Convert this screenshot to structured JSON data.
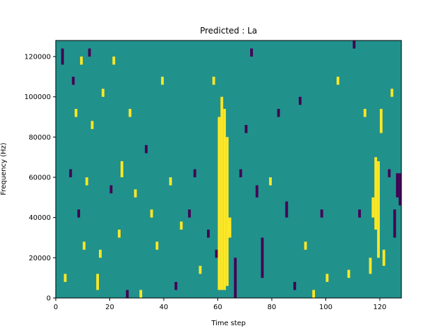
{
  "chart_data": {
    "type": "heatmap",
    "title": "Predicted : La",
    "xlabel": "Time step",
    "ylabel": "Frequency (Hz)",
    "xlim": [
      0,
      128
    ],
    "ylim": [
      0,
      128000
    ],
    "x_ticks": [
      0,
      20,
      40,
      60,
      80,
      100,
      120
    ],
    "y_ticks": [
      0,
      20000,
      40000,
      60000,
      80000,
      100000,
      120000
    ],
    "n_time_steps": 128,
    "n_frequency_bins": 64,
    "value_levels": [
      -1,
      0,
      1
    ],
    "colormap": {
      "-1": "#440154",
      "0": "#21918c",
      "1": "#fde725"
    },
    "cells": [
      {
        "t": 2,
        "f0": 116000,
        "f1": 124000,
        "v": -1
      },
      {
        "t": 3,
        "f0": 8000,
        "f1": 12000,
        "v": 1
      },
      {
        "t": 5,
        "f0": 60000,
        "f1": 64000,
        "v": -1
      },
      {
        "t": 6,
        "f0": 106000,
        "f1": 110000,
        "v": -1
      },
      {
        "t": 7,
        "f0": 90000,
        "f1": 94000,
        "v": 1
      },
      {
        "t": 8,
        "f0": 40000,
        "f1": 44000,
        "v": -1
      },
      {
        "t": 9,
        "f0": 116000,
        "f1": 120000,
        "v": 1
      },
      {
        "t": 10,
        "f0": 24000,
        "f1": 28000,
        "v": 1
      },
      {
        "t": 11,
        "f0": 56000,
        "f1": 60000,
        "v": 1
      },
      {
        "t": 12,
        "f0": 120000,
        "f1": 124000,
        "v": -1
      },
      {
        "t": 13,
        "f0": 84000,
        "f1": 88000,
        "v": 1
      },
      {
        "t": 15,
        "f0": 4000,
        "f1": 12000,
        "v": 1
      },
      {
        "t": 16,
        "f0": 20000,
        "f1": 24000,
        "v": 1
      },
      {
        "t": 17,
        "f0": 100000,
        "f1": 104000,
        "v": 1
      },
      {
        "t": 20,
        "f0": 52000,
        "f1": 56000,
        "v": -1
      },
      {
        "t": 21,
        "f0": 116000,
        "f1": 120000,
        "v": 1
      },
      {
        "t": 23,
        "f0": 30000,
        "f1": 34000,
        "v": 1
      },
      {
        "t": 24,
        "f0": 60000,
        "f1": 68000,
        "v": 1
      },
      {
        "t": 26,
        "f0": 0,
        "f1": 4000,
        "v": -1
      },
      {
        "t": 27,
        "f0": 90000,
        "f1": 94000,
        "v": 1
      },
      {
        "t": 29,
        "f0": 50000,
        "f1": 54000,
        "v": 1
      },
      {
        "t": 31,
        "f0": 0,
        "f1": 4000,
        "v": 1
      },
      {
        "t": 33,
        "f0": 72000,
        "f1": 76000,
        "v": -1
      },
      {
        "t": 35,
        "f0": 40000,
        "f1": 44000,
        "v": 1
      },
      {
        "t": 37,
        "f0": 24000,
        "f1": 28000,
        "v": 1
      },
      {
        "t": 39,
        "f0": 106000,
        "f1": 110000,
        "v": 1
      },
      {
        "t": 42,
        "f0": 56000,
        "f1": 60000,
        "v": 1
      },
      {
        "t": 44,
        "f0": 4000,
        "f1": 8000,
        "v": -1
      },
      {
        "t": 46,
        "f0": 34000,
        "f1": 38000,
        "v": 1
      },
      {
        "t": 49,
        "f0": 40000,
        "f1": 44000,
        "v": -1
      },
      {
        "t": 51,
        "f0": 60000,
        "f1": 64000,
        "v": -1
      },
      {
        "t": 53,
        "f0": 12000,
        "f1": 16000,
        "v": 1
      },
      {
        "t": 56,
        "f0": 30000,
        "f1": 34000,
        "v": -1
      },
      {
        "t": 58,
        "f0": 106000,
        "f1": 110000,
        "v": 1
      },
      {
        "t": 59,
        "f0": 20000,
        "f1": 24000,
        "v": -1
      },
      {
        "t": 60,
        "f0": 4000,
        "f1": 90000,
        "v": 1
      },
      {
        "t": 61,
        "f0": 4000,
        "f1": 100000,
        "v": 1
      },
      {
        "t": 62,
        "f0": 4000,
        "f1": 94000,
        "v": 1
      },
      {
        "t": 63,
        "f0": 6000,
        "f1": 80000,
        "v": 1
      },
      {
        "t": 64,
        "f0": 30000,
        "f1": 40000,
        "v": 1
      },
      {
        "t": 66,
        "f0": 0,
        "f1": 20000,
        "v": -1
      },
      {
        "t": 68,
        "f0": 60000,
        "f1": 64000,
        "v": -1
      },
      {
        "t": 70,
        "f0": 82000,
        "f1": 86000,
        "v": -1
      },
      {
        "t": 72,
        "f0": 120000,
        "f1": 124000,
        "v": -1
      },
      {
        "t": 74,
        "f0": 50000,
        "f1": 56000,
        "v": -1
      },
      {
        "t": 76,
        "f0": 10000,
        "f1": 30000,
        "v": -1
      },
      {
        "t": 79,
        "f0": 56000,
        "f1": 60000,
        "v": 1
      },
      {
        "t": 82,
        "f0": 90000,
        "f1": 94000,
        "v": -1
      },
      {
        "t": 85,
        "f0": 40000,
        "f1": 48000,
        "v": -1
      },
      {
        "t": 88,
        "f0": 4000,
        "f1": 8000,
        "v": -1
      },
      {
        "t": 90,
        "f0": 96000,
        "f1": 100000,
        "v": -1
      },
      {
        "t": 92,
        "f0": 24000,
        "f1": 28000,
        "v": 1
      },
      {
        "t": 95,
        "f0": 0,
        "f1": 4000,
        "v": 1
      },
      {
        "t": 98,
        "f0": 40000,
        "f1": 44000,
        "v": -1
      },
      {
        "t": 100,
        "f0": 8000,
        "f1": 12000,
        "v": 1
      },
      {
        "t": 104,
        "f0": 106000,
        "f1": 110000,
        "v": 1
      },
      {
        "t": 108,
        "f0": 10000,
        "f1": 14000,
        "v": 1
      },
      {
        "t": 110,
        "f0": 124000,
        "f1": 128000,
        "v": -1
      },
      {
        "t": 112,
        "f0": 40000,
        "f1": 44000,
        "v": -1
      },
      {
        "t": 114,
        "f0": 90000,
        "f1": 94000,
        "v": 1
      },
      {
        "t": 116,
        "f0": 12000,
        "f1": 20000,
        "v": 1
      },
      {
        "t": 117,
        "f0": 40000,
        "f1": 50000,
        "v": 1
      },
      {
        "t": 118,
        "f0": 34000,
        "f1": 70000,
        "v": 1
      },
      {
        "t": 119,
        "f0": 20000,
        "f1": 68000,
        "v": 1
      },
      {
        "t": 120,
        "f0": 82000,
        "f1": 94000,
        "v": 1
      },
      {
        "t": 121,
        "f0": 16000,
        "f1": 24000,
        "v": 1
      },
      {
        "t": 123,
        "f0": 60000,
        "f1": 64000,
        "v": -1
      },
      {
        "t": 124,
        "f0": 100000,
        "f1": 104000,
        "v": 1
      },
      {
        "t": 125,
        "f0": 30000,
        "f1": 44000,
        "v": -1
      },
      {
        "t": 126,
        "f0": 50000,
        "f1": 62000,
        "v": -1
      },
      {
        "t": 127,
        "f0": 46000,
        "f1": 62000,
        "v": -1
      }
    ]
  }
}
